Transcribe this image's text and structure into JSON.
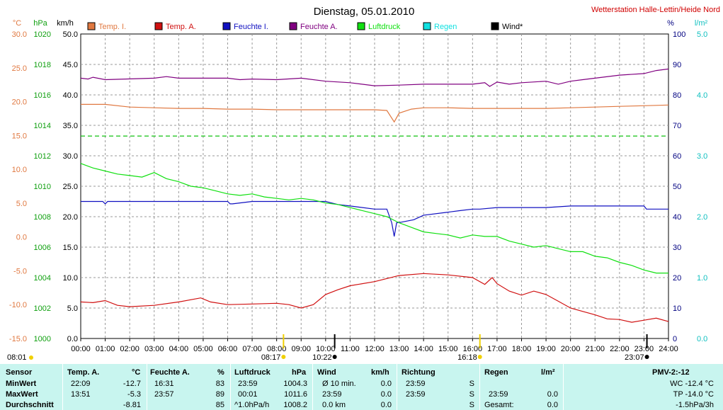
{
  "title": "Dienstag, 05.01.2010",
  "station": "Wetterstation Halle-Lettin/Heide Nord",
  "units": {
    "celsius": "°C",
    "hpa": "hPa",
    "kmh": "km/h",
    "percent": "%",
    "rain": "l/m²"
  },
  "legend": [
    {
      "label": "Temp. I.",
      "color": "#e07840"
    },
    {
      "label": "Temp. A.",
      "color": "#d01010"
    },
    {
      "label": "Feuchte I.",
      "color": "#1010c0"
    },
    {
      "label": "Feuchte A.",
      "color": "#800080"
    },
    {
      "label": "Luftdruck",
      "color": "#10e010"
    },
    {
      "label": "Regen",
      "color": "#10e0e0"
    },
    {
      "label": "Wind*",
      "color": "#000000"
    }
  ],
  "axes": {
    "celsius": {
      "ticks": [
        "30.0",
        "25.0",
        "20.0",
        "15.0",
        "10.0",
        "5.0",
        "0.0",
        "-5.0",
        "-10.0",
        "-15.0"
      ],
      "color": "#e07840"
    },
    "hpa": {
      "ticks": [
        "1020",
        "1018",
        "1016",
        "1014",
        "1012",
        "1010",
        "1008",
        "1006",
        "1004",
        "1002",
        "1000"
      ],
      "color": "#10a010"
    },
    "kmh": {
      "ticks": [
        "50.0",
        "45.0",
        "40.0",
        "35.0",
        "30.0",
        "25.0",
        "20.0",
        "15.0",
        "10.0",
        "5.0",
        "0.0"
      ],
      "color": "#000000"
    },
    "percent": {
      "ticks": [
        "100",
        "90",
        "80",
        "70",
        "60",
        "50",
        "40",
        "30",
        "20",
        "10",
        "0"
      ],
      "color": "#000080"
    },
    "rain": {
      "ticks": [
        "5.0",
        "4.0",
        "3.0",
        "2.0",
        "1.0",
        "0.0"
      ],
      "color": "#10c0c0"
    },
    "x": {
      "ticks": [
        "00:00",
        "01:00",
        "02:00",
        "03:00",
        "04:00",
        "05:00",
        "06:00",
        "07:00",
        "08:00",
        "09:00",
        "10:00",
        "11:00",
        "12:00",
        "13:00",
        "14:00",
        "15:00",
        "16:00",
        "17:00",
        "18:00",
        "19:00",
        "20:00",
        "21:00",
        "22:00",
        "23:00",
        "24:00"
      ]
    }
  },
  "markers": {
    "left_time": "08:01",
    "events": [
      {
        "time": "08:17",
        "hour": 8.28,
        "color": "#f0d000"
      },
      {
        "time": "10:22",
        "hour": 10.37,
        "color": "#000000"
      },
      {
        "time": "16:18",
        "hour": 16.3,
        "color": "#f0d000"
      },
      {
        "time": "23:07",
        "hour": 23.12,
        "color": "#000000"
      }
    ]
  },
  "chart_data": {
    "type": "line",
    "title": "Dienstag, 05.01.2010",
    "x_unit": "hour",
    "xlim": [
      0,
      24
    ],
    "grid": true,
    "legend_position": "top",
    "series": [
      {
        "name": "Temp. I.",
        "axis": "celsius",
        "ylim": [
          -15,
          30
        ],
        "color": "#e07840",
        "x": [
          0,
          1,
          2,
          3,
          4,
          5,
          6,
          7,
          8,
          9,
          10,
          11,
          12,
          12.5,
          12.8,
          13,
          13.5,
          14,
          15,
          16,
          17,
          18,
          19,
          20,
          21,
          22,
          23,
          24
        ],
        "y": [
          19.6,
          19.6,
          19.2,
          19.1,
          19.0,
          19.0,
          18.9,
          18.9,
          18.8,
          18.8,
          18.8,
          18.8,
          18.8,
          18.7,
          17.0,
          18.3,
          18.9,
          19.1,
          19.1,
          19.0,
          19.0,
          19.0,
          19.0,
          19.1,
          19.2,
          19.3,
          19.4,
          19.5
        ]
      },
      {
        "name": "Temp. A.",
        "axis": "celsius",
        "ylim": [
          -15,
          30
        ],
        "color": "#d01010",
        "x": [
          0,
          0.5,
          1,
          1.5,
          2,
          3,
          4,
          4.9,
          5.3,
          6,
          7,
          8,
          8.5,
          9,
          9.5,
          10,
          10.5,
          11,
          12,
          13,
          14,
          15,
          16,
          16.5,
          16.8,
          17,
          17.5,
          18,
          18.5,
          19,
          19.5,
          20,
          20.5,
          21,
          21.5,
          22,
          22.5,
          23,
          23.5,
          24
        ],
        "y": [
          -9.6,
          -9.7,
          -9.4,
          -10.1,
          -10.3,
          -10.1,
          -9.6,
          -9.0,
          -9.6,
          -10.0,
          -9.9,
          -9.8,
          -10.0,
          -10.5,
          -10.0,
          -8.5,
          -7.8,
          -7.2,
          -6.6,
          -5.7,
          -5.4,
          -5.6,
          -6.0,
          -7.0,
          -6.0,
          -6.9,
          -8.0,
          -8.6,
          -8.0,
          -8.5,
          -9.5,
          -10.5,
          -11.0,
          -11.5,
          -12.1,
          -12.2,
          -12.6,
          -12.3,
          -12.0,
          -12.5
        ]
      },
      {
        "name": "Feuchte I.",
        "axis": "percent",
        "ylim": [
          0,
          100
        ],
        "color": "#1010c0",
        "x": [
          0,
          0.9,
          1,
          1.1,
          6,
          6.1,
          6.2,
          7,
          10,
          10.5,
          11,
          12,
          12.5,
          12.7,
          12.8,
          12.9,
          13.1,
          13.6,
          14,
          15,
          15.5,
          16,
          16.3,
          17,
          19,
          20,
          21,
          22,
          23,
          23.1,
          24
        ],
        "y": [
          45.0,
          45.0,
          44.2,
          45.0,
          45.0,
          44.2,
          44.2,
          45.0,
          45.0,
          44.0,
          43.5,
          42.5,
          42.5,
          38.0,
          33.5,
          38.0,
          38.2,
          39.0,
          40.5,
          41.5,
          42.0,
          42.5,
          42.5,
          43.0,
          43.0,
          43.5,
          43.5,
          43.5,
          43.5,
          42.5,
          42.5
        ]
      },
      {
        "name": "Feuchte A.",
        "axis": "percent",
        "ylim": [
          0,
          100
        ],
        "color": "#800080",
        "x": [
          0,
          0.3,
          0.5,
          1,
          3,
          3.5,
          4,
          6,
          6.5,
          7,
          8,
          9,
          10,
          11,
          12,
          13,
          14,
          15,
          16,
          16.5,
          16.7,
          17,
          17.5,
          18,
          19,
          19.5,
          20,
          20.5,
          21,
          22,
          23,
          23.5,
          24
        ],
        "y": [
          85.5,
          85.2,
          85.8,
          85.0,
          85.5,
          86.0,
          85.5,
          85.5,
          85.0,
          85.2,
          85.0,
          85.5,
          84.5,
          84.0,
          83.0,
          83.2,
          83.5,
          83.5,
          83.5,
          84.0,
          82.8,
          84.2,
          83.5,
          84.0,
          84.5,
          83.5,
          84.5,
          85.0,
          85.5,
          86.5,
          87.0,
          88.0,
          88.5
        ]
      },
      {
        "name": "Luftdruck",
        "axis": "hpa",
        "ylim": [
          1000,
          1020
        ],
        "color": "#10e010",
        "x": [
          0,
          0.5,
          1,
          1.5,
          2,
          2.5,
          3,
          3.5,
          4,
          4.5,
          5,
          5.5,
          6,
          6.5,
          7,
          7.5,
          8,
          8.5,
          9,
          9.5,
          10,
          10.5,
          11,
          11.5,
          12,
          12.5,
          13,
          13.5,
          14,
          14.5,
          15,
          15.5,
          16,
          16.5,
          17,
          17.5,
          18,
          18.5,
          19,
          19.5,
          20,
          20.5,
          21,
          21.5,
          22,
          22.5,
          23,
          23.5,
          24
        ],
        "y": [
          1011.5,
          1011.2,
          1011.0,
          1010.8,
          1010.7,
          1010.6,
          1010.9,
          1010.5,
          1010.3,
          1010.0,
          1009.9,
          1009.7,
          1009.5,
          1009.4,
          1009.5,
          1009.3,
          1009.2,
          1009.1,
          1009.2,
          1009.1,
          1008.9,
          1008.8,
          1008.6,
          1008.4,
          1008.2,
          1008.0,
          1007.6,
          1007.3,
          1007.0,
          1006.9,
          1006.8,
          1006.6,
          1006.8,
          1006.7,
          1006.7,
          1006.4,
          1006.2,
          1006.0,
          1006.1,
          1005.9,
          1005.7,
          1005.7,
          1005.4,
          1005.3,
          1005.0,
          1004.8,
          1004.5,
          1004.3,
          1004.3
        ]
      },
      {
        "name": "Luftdruck (gestrichelt)",
        "axis": "hpa",
        "ylim": [
          1000,
          1020
        ],
        "color": "#10c010",
        "dashed": true,
        "x": [
          0,
          24
        ],
        "y": [
          1013.3,
          1013.3
        ]
      }
    ]
  },
  "summary": {
    "headers": [
      {
        "label": "Sensor"
      },
      {
        "label": "Temp. A.",
        "unit": "°C"
      },
      {
        "label": "Feuchte A.",
        "unit": "%"
      },
      {
        "label": "Luftdruck",
        "unit": "hPa"
      },
      {
        "label": "Wind",
        "unit": "km/h"
      },
      {
        "label": "Richtung"
      },
      {
        "label": "Regen",
        "unit": "l/m²"
      },
      {
        "label": "PMV-2:-12"
      }
    ],
    "rows": [
      {
        "label": "MinWert",
        "temp_time": "22:09",
        "temp_val": "-12.7",
        "hum_time": "16:31",
        "hum_val": "83",
        "press_time": "23:59",
        "press_val": "1004.3",
        "wind_desc": "Ø 10 min.",
        "wind_val": "0.0",
        "dir_time": "23:59",
        "dir_val": "S",
        "rain_time": "",
        "rain_val": "",
        "pmv": "WC -12.4 °C"
      },
      {
        "label": "MaxWert",
        "temp_time": "13:51",
        "temp_val": "-5.3",
        "hum_time": "23:57",
        "hum_val": "89",
        "press_time": "00:01",
        "press_val": "1011.6",
        "wind_desc": "23:59",
        "wind_val": "0.0",
        "dir_time": "23:59",
        "dir_val": "S",
        "rain_time": "23:59",
        "rain_val": "0.0",
        "pmv": "TP -14.0 °C"
      },
      {
        "label": "Durchschnitt",
        "temp_time": "",
        "temp_val": "-8.81",
        "hum_time": "",
        "hum_val": "85",
        "press_time": "^1.0hPa/h",
        "press_val": "1008.2",
        "wind_desc": "0.0 km",
        "wind_val": "0.0",
        "dir_time": "",
        "dir_val": "S",
        "rain_time": "Gesamt:",
        "rain_val": "0.0",
        "pmv": "-1.5hPa/3h"
      }
    ]
  }
}
